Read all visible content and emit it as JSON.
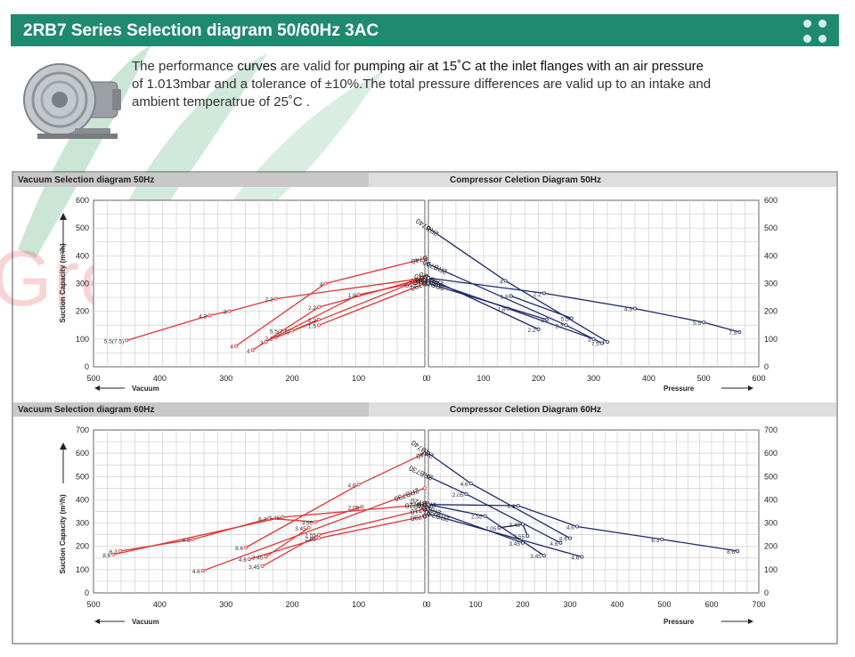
{
  "header": {
    "title": "2RB7 Series Selection diagram 50/60Hz 3AC",
    "accent_color": "#1f8a6e"
  },
  "watermark": {
    "text": "Greentech"
  },
  "intro": {
    "line1_pre": "The performance ",
    "line1_curves": "curves",
    "line1_mid": " are valid for ",
    "line1_accent": "pumping air at 15˚C at the inlet flanges with an air pressure",
    "line2": "of 1.013mbar and a tolerance of ±10%.The total pressure differences are valid up to an intake and",
    "line3": "ambient temperatrue of 25˚C ."
  },
  "colors": {
    "vacuum": "#e03535",
    "compressor": "#1c2a6e",
    "panel_header": "#d5d5d5"
  },
  "chart_data": [
    {
      "type": "line",
      "title": "Vacuum Selection diagram 50Hz",
      "xlabel": "Vacuum",
      "ylabel": "Suction Capacity (m³/h)",
      "xlim": [
        500,
        0
      ],
      "ylim": [
        0,
        600
      ],
      "x_ticks": [
        "500",
        "400",
        "300",
        "200",
        "100",
        "0"
      ],
      "y_ticks": [
        "0",
        "100",
        "200",
        "300",
        "400",
        "500",
        "600"
      ],
      "series": [
        {
          "name": "2RB740",
          "x": [
            285,
            150,
            0
          ],
          "y": [
            75,
            300,
            390
          ],
          "labels": [
            "4",
            "4",
            ""
          ]
        },
        {
          "name": "2RB730",
          "x": [
            260,
            160,
            0
          ],
          "y": [
            60,
            215,
            320
          ],
          "labels": [
            "4",
            "2.2",
            ""
          ]
        },
        {
          "name": "2RB720",
          "x": [
            225,
            0
          ],
          "y": [
            105,
            320
          ],
          "labels": [
            "2.2",
            ""
          ]
        },
        {
          "name": "2RB710",
          "x": [
            240,
            100,
            0
          ],
          "y": [
            90,
            260,
            310
          ],
          "labels": [
            "3",
            "1.8",
            ""
          ]
        },
        {
          "name": "2RB790",
          "x": [
            160,
            0
          ],
          "y": [
            150,
            300
          ],
          "labels": [
            "1.5",
            ""
          ]
        },
        {
          "name": "",
          "x": [
            450,
            325,
            295,
            225,
            0
          ],
          "y": [
            95,
            185,
            200,
            245,
            320
          ],
          "labels": [
            "5.5(7.5)",
            "4.3",
            "3",
            "2.2",
            ""
          ]
        },
        {
          "name": "",
          "x": [
            200,
            160
          ],
          "y": [
            130,
            170
          ],
          "labels": [
            "5.5(7.5)",
            "2.2"
          ]
        }
      ]
    },
    {
      "type": "line",
      "title": "Compressor Celetion Diagram 50Hz",
      "xlabel": "Pressure",
      "ylabel": "",
      "xlim": [
        0,
        600
      ],
      "ylim": [
        0,
        600
      ],
      "x_ticks": [
        "0",
        "100",
        "200",
        "300",
        "400",
        "500",
        "600"
      ],
      "y_ticks": [
        "0",
        "100",
        "200",
        "300",
        "400",
        "500",
        "600"
      ],
      "series": [
        {
          "name": "2RB740",
          "x": [
            0,
            140,
            325
          ],
          "y": [
            500,
            310,
            90
          ],
          "labels": [
            "",
            "4",
            "4"
          ]
        },
        {
          "name": "2RB730",
          "x": [
            0,
            250,
            315
          ],
          "y": [
            370,
            150,
            85
          ],
          "labels": [
            "",
            "2.2",
            "7.5"
          ]
        },
        {
          "name": "2RB720",
          "x": [
            0,
            200
          ],
          "y": [
            320,
            135
          ],
          "labels": [
            "",
            "2.2"
          ]
        },
        {
          "name": "2RB710",
          "x": [
            0,
            145,
            300
          ],
          "y": [
            310,
            210,
            100
          ],
          "labels": [
            "",
            "1.8",
            "3"
          ]
        },
        {
          "name": "2RB790",
          "x": [
            0,
            215
          ],
          "y": [
            300,
            170
          ],
          "labels": [
            "",
            "3"
          ]
        },
        {
          "name": "",
          "x": [
            0,
            210,
            375,
            500,
            565
          ],
          "y": [
            320,
            265,
            210,
            160,
            125
          ],
          "labels": [
            "",
            "2.2",
            "4.3",
            "5.5",
            "7.5"
          ]
        },
        {
          "name": "",
          "x": [
            150,
            260
          ],
          "y": [
            255,
            175
          ],
          "labels": [
            "1.8",
            "5.5"
          ]
        }
      ]
    },
    {
      "type": "line",
      "title": "Vacuum Selection diagram 60Hz",
      "xlabel": "Vacuum",
      "ylabel": "Suction Capacity (m³/h)",
      "xlim": [
        500,
        0
      ],
      "ylim": [
        0,
        700
      ],
      "x_ticks": [
        "500",
        "400",
        "300",
        "200",
        "100",
        "0"
      ],
      "y_ticks": [
        "0",
        "100",
        "200",
        "300",
        "400",
        "500",
        "600",
        "700"
      ],
      "series": [
        {
          "name": "2RB740",
          "x": [
            270,
            100,
            0
          ],
          "y": [
            195,
            465,
            600
          ],
          "labels": [
            "8.6",
            "4.6",
            ""
          ]
        },
        {
          "name": "2RB730",
          "x": [
            335,
            0
          ],
          "y": [
            95,
            450
          ],
          "labels": [
            "4.6",
            ""
          ]
        },
        {
          "name": "2RB720",
          "x": [
            470,
            215,
            0
          ],
          "y": [
            165,
            325,
            380
          ],
          "labels": [
            "8.6",
            "3.45",
            ""
          ]
        },
        {
          "name": "2RB710",
          "x": [
            245,
            160,
            0
          ],
          "y": [
            115,
            250,
            360
          ],
          "labels": [
            "3.45",
            "2.55",
            ""
          ]
        },
        {
          "name": "2RB790",
          "x": [
            265,
            160,
            0
          ],
          "y": [
            145,
            235,
            330
          ],
          "labels": [
            "4.6",
            "2.05",
            ""
          ]
        },
        {
          "name": "",
          "x": [
            460,
            350,
            235,
            165,
            95
          ],
          "y": [
            180,
            230,
            320,
            305,
            370
          ],
          "labels": [
            "6.3",
            "4.6",
            "6.3",
            "3.55",
            "2.05"
          ]
        },
        {
          "name": "",
          "x": [
            240,
            175
          ],
          "y": [
            155,
            280
          ],
          "labels": [
            "3.45",
            "3.45"
          ]
        }
      ]
    },
    {
      "type": "line",
      "title": "Compressor Celetion Diagram 60Hz",
      "xlabel": "Pressure",
      "ylabel": "",
      "xlim": [
        0,
        700
      ],
      "ylim": [
        0,
        700
      ],
      "x_ticks": [
        "0",
        "100",
        "200",
        "300",
        "400",
        "500",
        "600",
        "700"
      ],
      "y_ticks": [
        "0",
        "100",
        "200",
        "300",
        "400",
        "500",
        "600",
        "700"
      ],
      "series": [
        {
          "name": "2RB740",
          "x": [
            0,
            90,
            300
          ],
          "y": [
            600,
            470,
            235
          ],
          "labels": [
            "",
            "4.6",
            "8.6"
          ]
        },
        {
          "name": "2RB730",
          "x": [
            0,
            80,
            280
          ],
          "y": [
            500,
            425,
            215
          ],
          "labels": [
            "",
            "2.05",
            "4.6"
          ]
        },
        {
          "name": "2RB720",
          "x": [
            0,
            120,
            245
          ],
          "y": [
            380,
            330,
            160
          ],
          "labels": [
            "",
            "2.55",
            "3.45"
          ]
        },
        {
          "name": "2RB710",
          "x": [
            0,
            200
          ],
          "y": [
            360,
            215
          ],
          "labels": [
            "",
            "3.45"
          ]
        },
        {
          "name": "2RB790",
          "x": [
            0,
            325
          ],
          "y": [
            340,
            155
          ],
          "labels": [
            "",
            "4.6"
          ]
        },
        {
          "name": "",
          "x": [
            0,
            190,
            315,
            495,
            655
          ],
          "y": [
            380,
            375,
            285,
            230,
            180
          ],
          "labels": [
            "",
            "6.3",
            "4.6",
            "6.3",
            "8.6"
          ]
        },
        {
          "name": "",
          "x": [
            150,
            200,
            210
          ],
          "y": [
            280,
            295,
            245
          ],
          "labels": [
            "2.05",
            "3.45",
            "2.55"
          ]
        }
      ]
    }
  ]
}
